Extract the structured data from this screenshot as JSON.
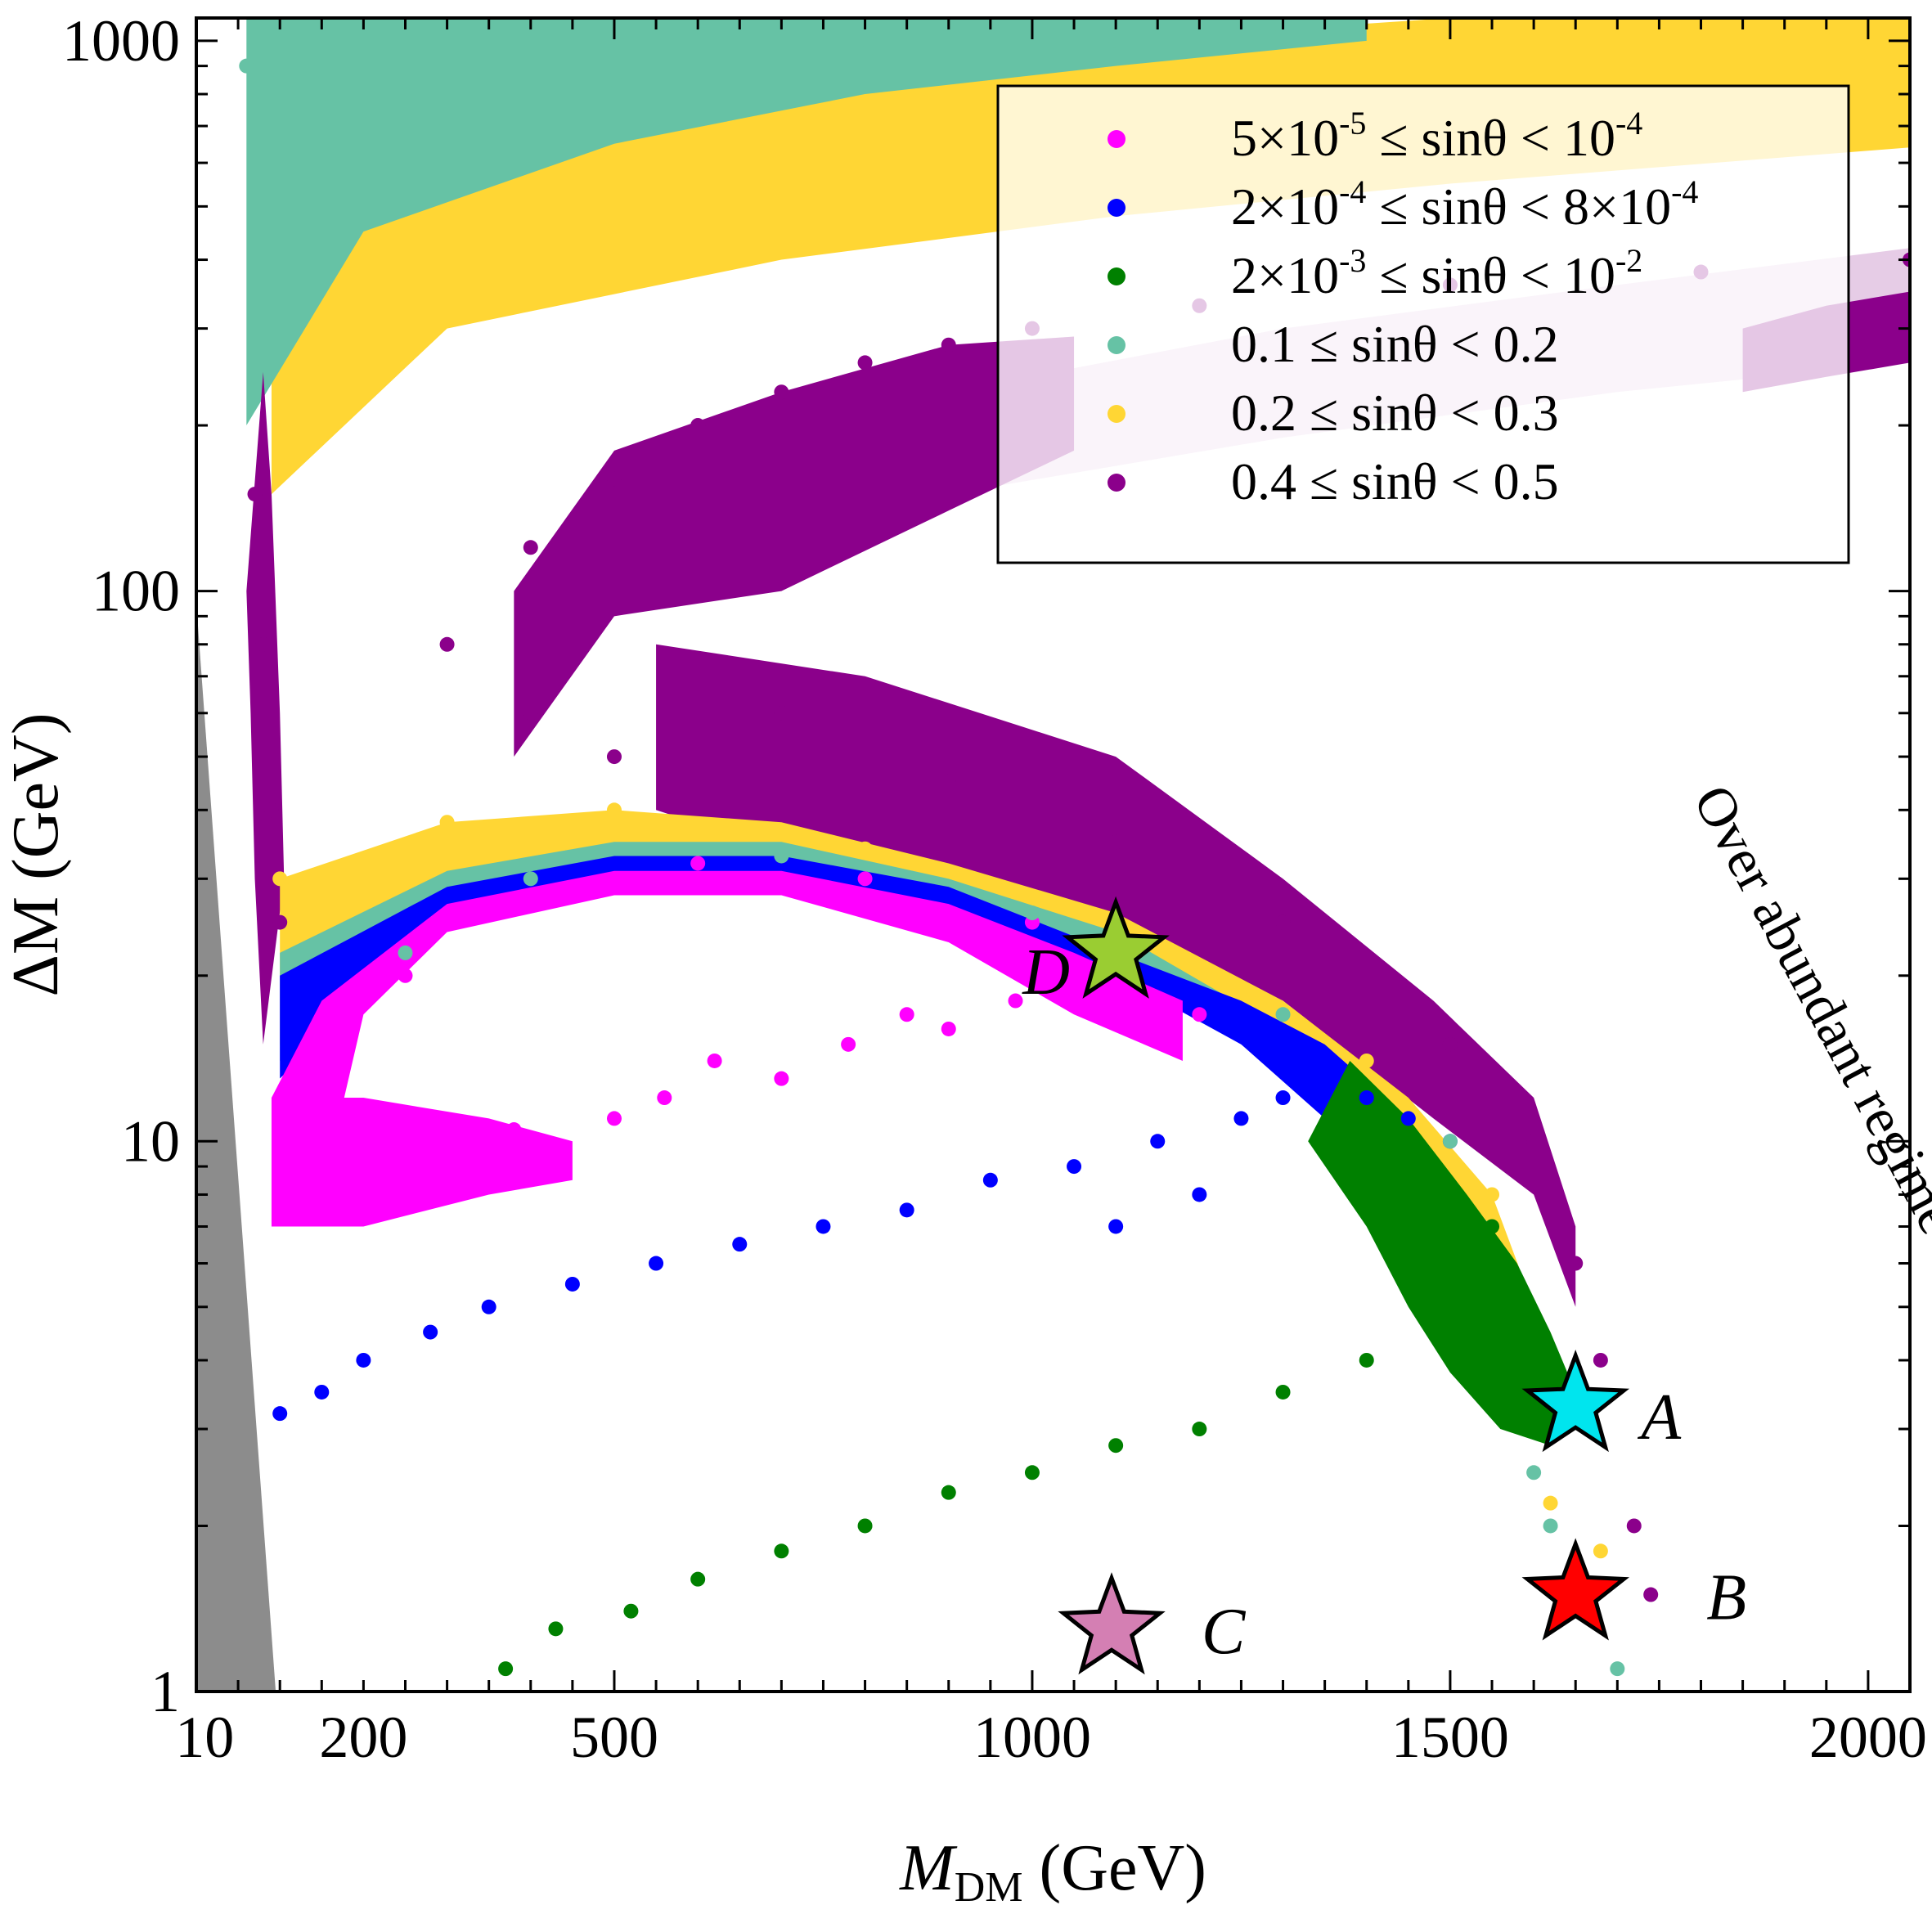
{
  "chart_data": {
    "type": "scatter",
    "title": "",
    "xlabel": {
      "main": "M",
      "sub": "DM",
      "unit": " (GeV)"
    },
    "ylabel": "ΔM (GeV)",
    "x_scale": "linear",
    "y_scale": "log",
    "xlim": [
      0,
      2050
    ],
    "ylim": [
      1,
      1100
    ],
    "x_ticks": [
      {
        "value": 10,
        "label": "10"
      },
      {
        "value": 200,
        "label": "200"
      },
      {
        "value": 500,
        "label": "500"
      },
      {
        "value": 1000,
        "label": "1000"
      },
      {
        "value": 1500,
        "label": "1500"
      },
      {
        "value": 2000,
        "label": "2000"
      }
    ],
    "y_ticks": [
      {
        "value": 1,
        "label": "1"
      },
      {
        "value": 10,
        "label": "10"
      },
      {
        "value": 100,
        "label": "100"
      },
      {
        "value": 1000,
        "label": "1000"
      }
    ],
    "grid": false,
    "legend_position": "top-right",
    "series": [
      {
        "name": "5×10-5 ≤ sinθ < 10-4",
        "color": "#ff00ff",
        "legend": [
          {
            "t": "5×10"
          },
          {
            "t": "-5",
            "sup": true
          },
          {
            "t": " ≤ sinθ < 10"
          },
          {
            "t": "-4",
            "sup": true
          }
        ],
        "points": [
          [
            190,
            8
          ],
          [
            230,
            9
          ],
          [
            300,
            9.5
          ],
          [
            380,
            10.5
          ],
          [
            420,
            9
          ],
          [
            500,
            11
          ],
          [
            560,
            12
          ],
          [
            620,
            14
          ],
          [
            700,
            13
          ],
          [
            780,
            15
          ],
          [
            850,
            17
          ],
          [
            900,
            16
          ],
          [
            980,
            18
          ],
          [
            1050,
            19
          ],
          [
            1150,
            18
          ],
          [
            1200,
            17
          ],
          [
            250,
            20
          ],
          [
            400,
            28
          ],
          [
            600,
            32
          ],
          [
            800,
            30
          ],
          [
            1000,
            25
          ]
        ]
      },
      {
        "name": "2×10-4 ≤ sinθ < 8×10-4",
        "color": "#0000ff",
        "legend": [
          {
            "t": "2×10"
          },
          {
            "t": "-4",
            "sup": true
          },
          {
            "t": " ≤ sinθ < 8×10"
          },
          {
            "t": "-4",
            "sup": true
          }
        ],
        "points": [
          [
            100,
            3.2
          ],
          [
            150,
            3.5
          ],
          [
            200,
            4
          ],
          [
            280,
            4.5
          ],
          [
            350,
            5
          ],
          [
            450,
            5.5
          ],
          [
            550,
            6
          ],
          [
            650,
            6.5
          ],
          [
            750,
            7
          ],
          [
            850,
            7.5
          ],
          [
            950,
            8.5
          ],
          [
            1050,
            9
          ],
          [
            1150,
            10
          ],
          [
            1250,
            11
          ],
          [
            1300,
            12
          ],
          [
            1350,
            13
          ],
          [
            1400,
            12
          ],
          [
            1450,
            11
          ],
          [
            1500,
            10
          ],
          [
            1200,
            8
          ],
          [
            1100,
            7
          ]
        ]
      },
      {
        "name": "2×10-3 ≤ sinθ < 10-2",
        "color": "#008000",
        "legend": [
          {
            "t": "2×10"
          },
          {
            "t": "-3",
            "sup": true
          },
          {
            "t": " ≤ sinθ < 10"
          },
          {
            "t": "-2",
            "sup": true
          }
        ],
        "points": [
          [
            370,
            1.1
          ],
          [
            430,
            1.3
          ],
          [
            520,
            1.4
          ],
          [
            600,
            1.6
          ],
          [
            700,
            1.8
          ],
          [
            800,
            2
          ],
          [
            900,
            2.3
          ],
          [
            1000,
            2.5
          ],
          [
            1100,
            2.8
          ],
          [
            1200,
            3
          ],
          [
            1300,
            3.5
          ],
          [
            1400,
            4
          ],
          [
            1500,
            5
          ],
          [
            1530,
            6
          ],
          [
            1550,
            7
          ],
          [
            1480,
            8
          ],
          [
            1450,
            9
          ],
          [
            1580,
            4.5
          ],
          [
            1600,
            4
          ]
        ]
      },
      {
        "name": "0.1 ≤ sinθ < 0.2",
        "color": "#66c2a5",
        "legend": [
          {
            "t": "0.1 ≤ sinθ < 0.2"
          }
        ],
        "points": [
          [
            60,
            900
          ],
          [
            70,
            300
          ],
          [
            150,
            800
          ],
          [
            300,
            700
          ],
          [
            500,
            850
          ],
          [
            800,
            950
          ],
          [
            1100,
            1000
          ],
          [
            1300,
            1050
          ],
          [
            1600,
            2.5
          ],
          [
            1620,
            2
          ],
          [
            1650,
            1.5
          ],
          [
            1700,
            1.1
          ],
          [
            250,
            22
          ],
          [
            400,
            30
          ],
          [
            700,
            33
          ],
          [
            1000,
            26
          ],
          [
            1300,
            17
          ],
          [
            1500,
            10
          ]
        ]
      },
      {
        "name": "0.2 ≤ sinθ < 0.3",
        "color": "#ffd634",
        "legend": [
          {
            "t": "0.2 ≤ sinθ < 0.3"
          }
        ],
        "points": [
          [
            100,
            200
          ],
          [
            150,
            250
          ],
          [
            300,
            350
          ],
          [
            500,
            450
          ],
          [
            800,
            550
          ],
          [
            1100,
            650
          ],
          [
            1400,
            750
          ],
          [
            1700,
            850
          ],
          [
            2000,
            950
          ],
          [
            100,
            30
          ],
          [
            300,
            38
          ],
          [
            500,
            40
          ],
          [
            800,
            34
          ],
          [
            1100,
            24
          ],
          [
            1400,
            14
          ],
          [
            1550,
            8
          ],
          [
            1620,
            2.2
          ],
          [
            1680,
            1.8
          ]
        ]
      },
      {
        "name": "0.4 ≤ sinθ < 0.5",
        "color": "#8b008b",
        "legend": [
          {
            "t": "0.4 ≤ sinθ < 0.5"
          }
        ],
        "points": [
          [
            70,
            150
          ],
          [
            80,
            80
          ],
          [
            90,
            40
          ],
          [
            100,
            25
          ],
          [
            400,
            120
          ],
          [
            500,
            160
          ],
          [
            600,
            200
          ],
          [
            700,
            230
          ],
          [
            800,
            260
          ],
          [
            900,
            280
          ],
          [
            1000,
            300
          ],
          [
            1200,
            330
          ],
          [
            1500,
            360
          ],
          [
            1800,
            380
          ],
          [
            2050,
            400
          ],
          [
            300,
            80
          ],
          [
            400,
            60
          ],
          [
            500,
            50
          ],
          [
            700,
            60
          ],
          [
            900,
            45
          ],
          [
            1100,
            35
          ],
          [
            1300,
            25
          ],
          [
            1500,
            15
          ],
          [
            1600,
            10
          ],
          [
            1650,
            6
          ],
          [
            1680,
            4
          ],
          [
            1720,
            2
          ],
          [
            1740,
            1.5
          ]
        ]
      }
    ],
    "benchmarks": [
      {
        "label": "A",
        "x": 1650,
        "y": 3.3,
        "color": "#00e5ee"
      },
      {
        "label": "B",
        "x": 1650,
        "y": 1.5,
        "color": "#ff0000"
      },
      {
        "label": "C",
        "x": 1095,
        "y": 1.3,
        "color": "#d47fb3"
      },
      {
        "label": "D",
        "x": 1100,
        "y": 22,
        "color": "#9acd32"
      }
    ],
    "annotations": [
      {
        "text": "Over abundant regime",
        "x": 1790,
        "y": 42,
        "rotation": 62
      }
    ],
    "shaded_region": {
      "color": "#808080",
      "description_points": [
        [
          0,
          1
        ],
        [
          0,
          95
        ],
        [
          95,
          1
        ]
      ]
    }
  }
}
